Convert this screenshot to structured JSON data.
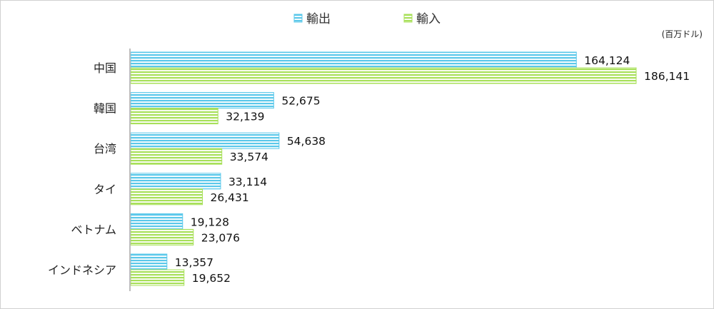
{
  "chart_data": {
    "type": "bar",
    "orientation": "horizontal",
    "title": "",
    "unit": "(百万ドル)",
    "categories": [
      "中国",
      "韓国",
      "台湾",
      "タイ",
      "ベトナム",
      "インドネシア"
    ],
    "series": [
      {
        "name": "輸出",
        "values": [
          164124,
          52675,
          54638,
          33114,
          19128,
          13357
        ],
        "labels": [
          "164,124",
          "52,675",
          "54,638",
          "33,114",
          "19,128",
          "13,357"
        ],
        "color": "#5bc8ea"
      },
      {
        "name": "輸入",
        "values": [
          186141,
          32139,
          33574,
          26431,
          23076,
          19652
        ],
        "labels": [
          "186,141",
          "32,139",
          "33,574",
          "26,431",
          "23,076",
          "19,652"
        ],
        "color": "#a8e05a"
      }
    ],
    "xlim": [
      0,
      200000
    ],
    "grid": false,
    "legend_position": "top-center"
  }
}
